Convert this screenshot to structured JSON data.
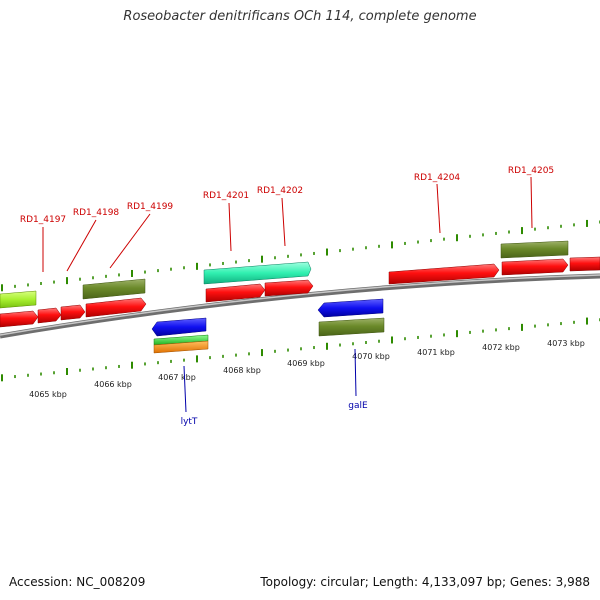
{
  "title": "Roseobacter denitrificans OCh 114, complete genome",
  "footer": {
    "accession": "Accession: NC_008209",
    "summary": "Topology: circular; Length: 4,133,097 bp; Genes: 3,988"
  },
  "colors": {
    "backbone": "#8a8a8a",
    "tick": "#2e8b00",
    "label_red": "#cc0000",
    "label_blue": "#0000aa"
  },
  "axis": {
    "unit": "kbp",
    "ticks": [
      {
        "label": "4065 kbp"
      },
      {
        "label": "4066 kbp"
      },
      {
        "label": "4067 kbp"
      },
      {
        "label": "4068 kbp"
      },
      {
        "label": "4069 kbp"
      },
      {
        "label": "4070 kbp"
      },
      {
        "label": "4071 kbp"
      },
      {
        "label": "4072 kbp"
      },
      {
        "label": "4073 kbp"
      }
    ]
  },
  "gene_labels_top": [
    {
      "name": "RD1_4197"
    },
    {
      "name": "RD1_4198"
    },
    {
      "name": "RD1_4199"
    },
    {
      "name": "RD1_4201"
    },
    {
      "name": "RD1_4202"
    },
    {
      "name": "RD1_4204"
    },
    {
      "name": "RD1_4205"
    }
  ],
  "gene_labels_bottom": [
    {
      "name": "lytT"
    },
    {
      "name": "galE"
    }
  ]
}
